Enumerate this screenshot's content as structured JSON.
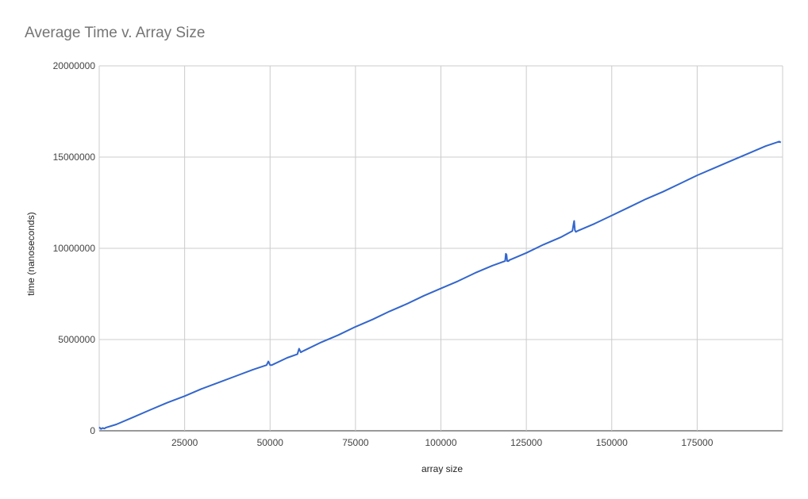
{
  "chart_data": {
    "type": "line",
    "title": "Average Time v. Array Size",
    "xlabel": "array size",
    "ylabel": "time (nanoseconds)",
    "xlim": [
      0,
      200000
    ],
    "ylim": [
      0,
      20000000
    ],
    "x_ticks": [
      25000,
      50000,
      75000,
      100000,
      125000,
      150000,
      175000
    ],
    "x_tick_labels": [
      "25000",
      "50000",
      "75000",
      "100000",
      "125000",
      "150000",
      "175000"
    ],
    "y_ticks": [
      0,
      5000000,
      10000000,
      15000000,
      20000000
    ],
    "y_tick_labels": [
      "0",
      "5000000",
      "10000000",
      "15000000",
      "20000000"
    ],
    "grid": true,
    "legend": "none",
    "series": [
      {
        "color": "#3366cc",
        "x": [
          0,
          500,
          1000,
          1500,
          2000,
          5000,
          10000,
          15000,
          20000,
          25000,
          30000,
          35000,
          40000,
          45000,
          49000,
          49500,
          50000,
          50500,
          55000,
          58000,
          58500,
          59000,
          59500,
          60000,
          65000,
          70000,
          75000,
          80000,
          85000,
          90000,
          95000,
          100000,
          105000,
          110000,
          115000,
          118800,
          119000,
          119200,
          119400,
          119800,
          120000,
          125000,
          130000,
          135000,
          138500,
          138800,
          139000,
          139200,
          139500,
          140000,
          145000,
          150000,
          155000,
          160000,
          165000,
          170000,
          175000,
          180000,
          185000,
          190000,
          195000,
          199000,
          199500
        ],
        "y": [
          200000,
          100000,
          150000,
          120000,
          180000,
          350000,
          750000,
          1150000,
          1550000,
          1900000,
          2300000,
          2650000,
          3000000,
          3350000,
          3600000,
          3800000,
          3600000,
          3600000,
          4000000,
          4200000,
          4500000,
          4300000,
          4350000,
          4400000,
          4850000,
          5250000,
          5700000,
          6100000,
          6550000,
          6950000,
          7400000,
          7800000,
          8200000,
          8650000,
          9050000,
          9300000,
          9700000,
          9650000,
          9300000,
          9300000,
          9350000,
          9750000,
          10200000,
          10600000,
          10950000,
          11300000,
          11500000,
          11000000,
          10900000,
          10950000,
          11350000,
          11800000,
          12250000,
          12700000,
          13100000,
          13550000,
          14000000,
          14400000,
          14800000,
          15200000,
          15600000,
          15850000,
          15800000
        ]
      }
    ]
  }
}
